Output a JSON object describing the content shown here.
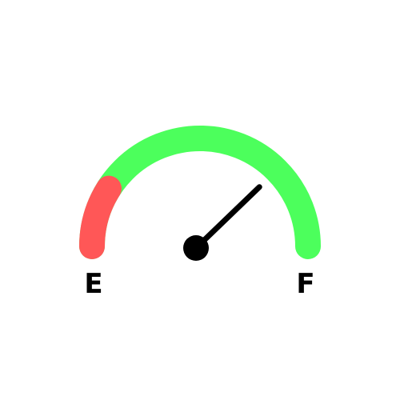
{
  "gauge": {
    "empty_label": "E",
    "full_label": "F",
    "level": 0.75,
    "low_zone_end": 0.18,
    "colors": {
      "track": "#4cff5c",
      "low_zone": "#ff5757",
      "needle": "#000000",
      "hub": "#000000",
      "background": "#ffffff"
    }
  }
}
